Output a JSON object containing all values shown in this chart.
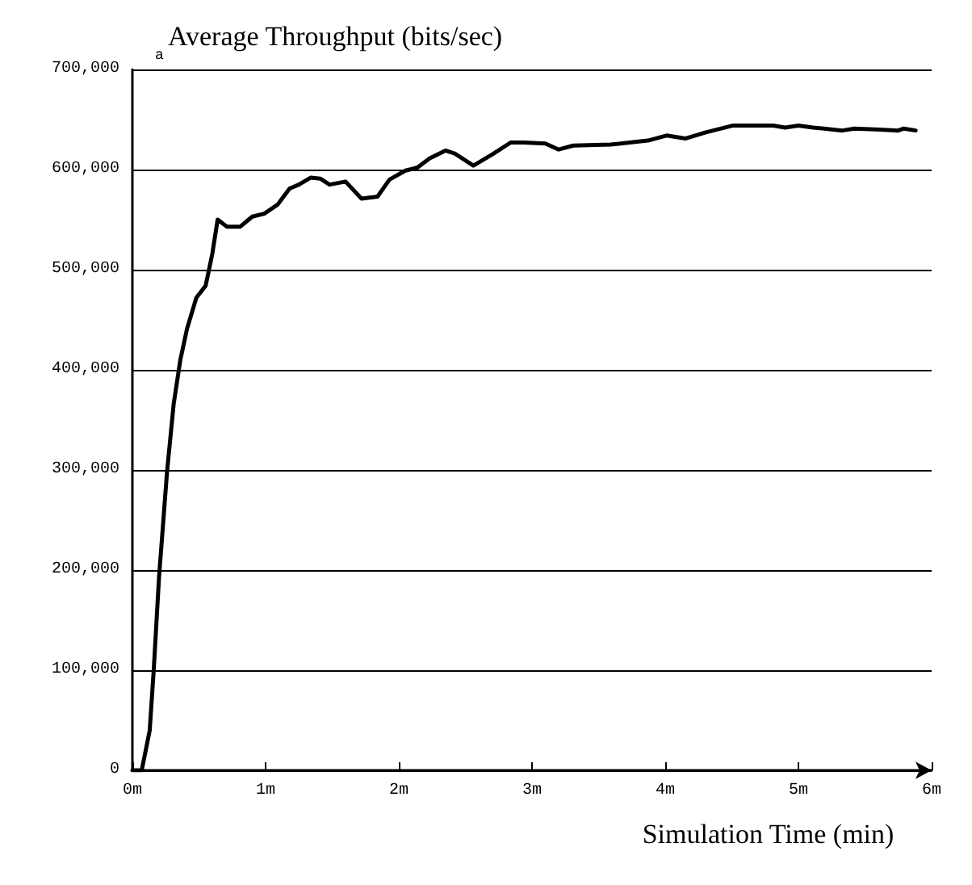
{
  "chart_data": {
    "type": "line",
    "ylabel": "Average Throughput (bits/sec)",
    "xlabel": "Simulation Time (min)",
    "annotations": [
      "a"
    ],
    "xlim": [
      0,
      6
    ],
    "ylim": [
      0,
      700000
    ],
    "xticks": [
      {
        "value": 0,
        "label": "0m"
      },
      {
        "value": 1,
        "label": "1m"
      },
      {
        "value": 2,
        "label": "2m"
      },
      {
        "value": 3,
        "label": "3m"
      },
      {
        "value": 4,
        "label": "4m"
      },
      {
        "value": 5,
        "label": "5m"
      },
      {
        "value": 6,
        "label": "6m"
      }
    ],
    "yticks": [
      0,
      {
        "value": 100000,
        "label": "100,000"
      },
      {
        "value": 200000,
        "label": "200,000"
      },
      {
        "value": 300000,
        "label": "300,000"
      },
      {
        "value": 400000,
        "label": "400,000"
      },
      {
        "value": 500000,
        "label": "500,000"
      },
      {
        "value": 600000,
        "label": "600,000"
      },
      {
        "value": 700000,
        "label": "700,000"
      }
    ],
    "grid": "y",
    "marker": "none",
    "line_style": "solid",
    "series": [
      {
        "color": "#000000",
        "x": [
          0,
          0.07,
          0.13,
          0.16,
          0.2,
          0.26,
          0.31,
          0.36,
          0.41,
          0.48,
          0.55,
          0.6,
          0.64,
          0.71,
          0.81,
          0.9,
          0.99,
          1.09,
          1.18,
          1.25,
          1.34,
          1.41,
          1.48,
          1.6,
          1.72,
          1.84,
          1.93,
          2.05,
          2.14,
          2.23,
          2.35,
          2.42,
          2.56,
          2.7,
          2.84,
          2.94,
          3.1,
          3.2,
          3.31,
          3.59,
          3.87,
          4.01,
          4.15,
          4.3,
          4.51,
          4.81,
          4.9,
          5.0,
          5.11,
          5.33,
          5.42,
          5.61,
          5.75,
          5.79,
          5.88
        ],
        "values": [
          0,
          0,
          40000,
          100000,
          193000,
          298000,
          366000,
          410000,
          441000,
          472000,
          484000,
          516000,
          550000,
          543000,
          543000,
          553000,
          556000,
          565000,
          581000,
          585000,
          592000,
          591000,
          585000,
          588000,
          571000,
          573000,
          590000,
          599000,
          602000,
          611000,
          619000,
          616000,
          604000,
          615000,
          627000,
          627000,
          626000,
          620000,
          624000,
          625000,
          629000,
          634000,
          631000,
          637000,
          644000,
          644000,
          642000,
          644000,
          642000,
          639000,
          641000,
          640000,
          639000,
          641000,
          639000
        ]
      }
    ]
  }
}
